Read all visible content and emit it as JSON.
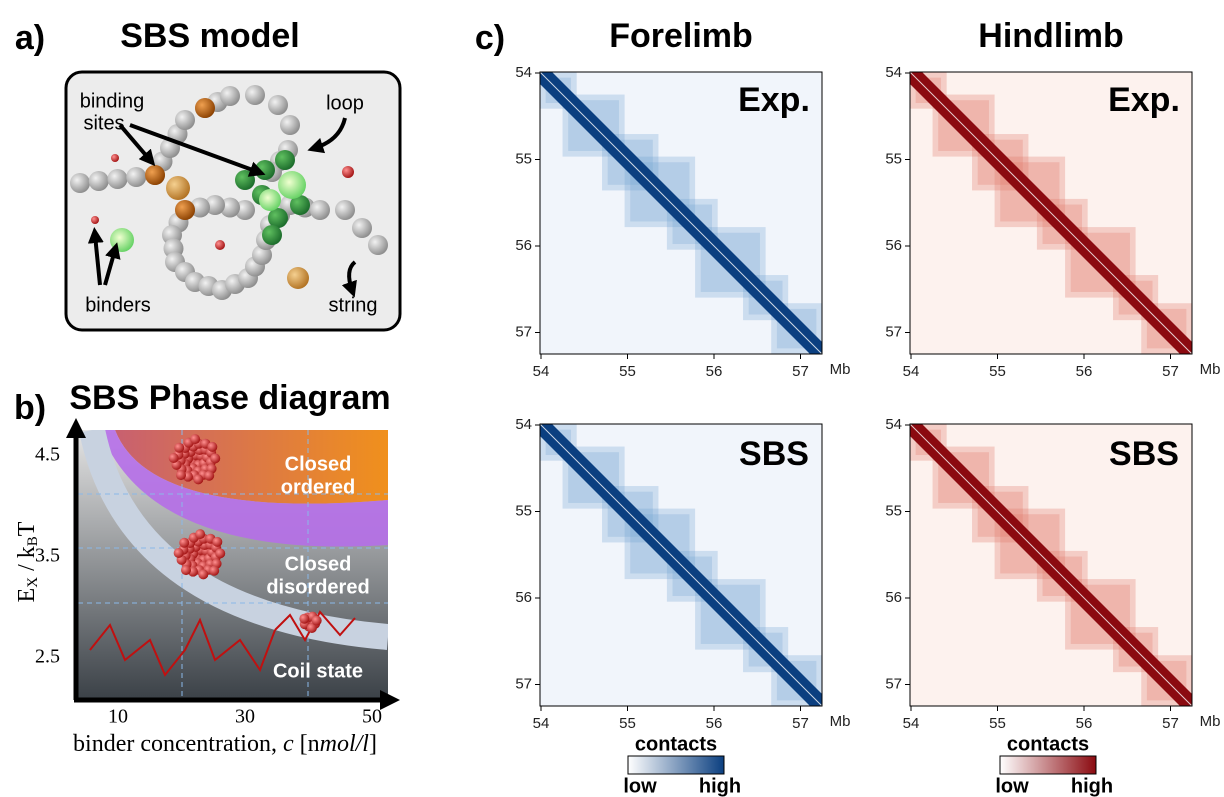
{
  "panel_a": {
    "label": "a)",
    "title": "SBS model",
    "binding_sites": [
      "binding",
      "sites"
    ],
    "loop": "loop",
    "binders": "binders",
    "string": "string"
  },
  "panel_b": {
    "label": "b)",
    "title": "SBS Phase diagram",
    "y_axis": {
      "parts": [
        "E",
        "X",
        " / k",
        "B",
        "T"
      ],
      "ticks": [
        4.5,
        3.5,
        2.5
      ]
    },
    "x_axis": {
      "parts": [
        "binder concentration, ",
        "c",
        " [n",
        "mol/l",
        "]"
      ],
      "ticks": [
        10,
        30,
        50
      ]
    },
    "regions": [
      [
        "Closed",
        "ordered"
      ],
      [
        "Closed",
        "disordered"
      ],
      [
        "Coil state"
      ]
    ]
  },
  "panel_c": {
    "label": "c)",
    "ticks": [
      54,
      55,
      56,
      57
    ],
    "unit": "Mb",
    "columns": [
      {
        "title": "Forelimb",
        "maps": [
          "Exp.",
          "SBS"
        ]
      },
      {
        "title": "Hindlimb",
        "maps": [
          "Exp.",
          "SBS"
        ]
      }
    ],
    "colorbar": {
      "title": "contacts",
      "low": "low",
      "high": "high"
    }
  }
}
